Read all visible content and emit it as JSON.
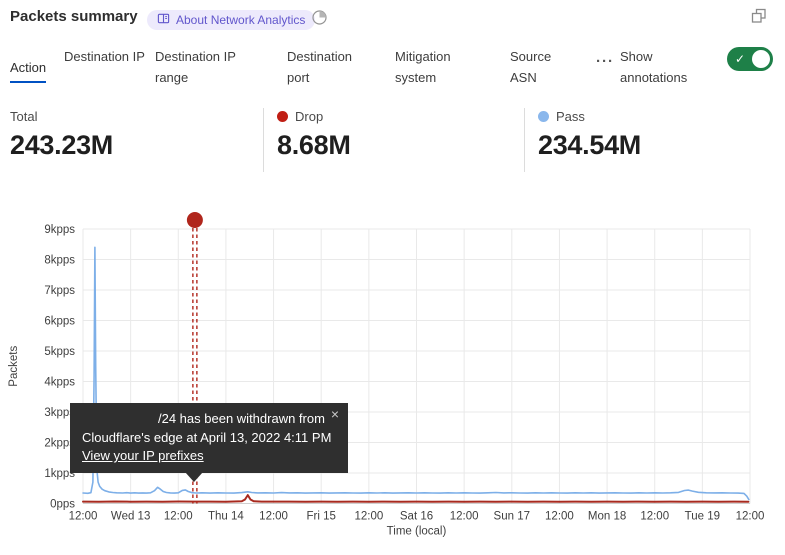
{
  "header": {
    "title": "Packets summary",
    "badge_label": "About Network Analytics"
  },
  "icons": {
    "badge": "book-icon",
    "header_time": "time-filter-icon",
    "window": "expand-icon",
    "more": "ellipsis-icon",
    "close": "close-icon"
  },
  "tabs": {
    "items": [
      {
        "label": "Action",
        "active": true
      },
      {
        "label": "Destination IP",
        "active": false
      },
      {
        "label": "Destination IP range",
        "active": false
      },
      {
        "label": "Destination port",
        "active": false
      },
      {
        "label": "Mitigation system",
        "active": false
      },
      {
        "label": "Source ASN",
        "active": false
      }
    ],
    "more_label": "···",
    "annotations_label": "Show annotations",
    "toggle_on": true,
    "active_underline_color": "#0051c3",
    "toggle_color": "#1e8048"
  },
  "stats": {
    "items": [
      {
        "label": "Total",
        "value": "243.23M",
        "dot_color": null
      },
      {
        "label": "Drop",
        "value": "8.68M",
        "dot_color": "#c01e14"
      },
      {
        "label": "Pass",
        "value": "234.54M",
        "dot_color": "#8ab7ec"
      }
    ]
  },
  "tooltip": {
    "line1": "/24 has been withdrawn from",
    "line2": "Cloudflare's edge at April 13, 2022 4:11 PM",
    "link_label": "View your IP prefixes",
    "close_label": "×"
  },
  "chart_data": {
    "type": "line",
    "title": "",
    "xlabel": "Time (local)",
    "ylabel": "Packets",
    "grid": true,
    "legend_position": "none",
    "x_unit": "hours from Apr 12 12:00",
    "x_range": [
      0,
      168
    ],
    "ylim": [
      0,
      9000
    ],
    "y_ticks": [
      {
        "value": 0,
        "label": "0pps"
      },
      {
        "value": 1000,
        "label": "1kpps"
      },
      {
        "value": 2000,
        "label": "2kpps"
      },
      {
        "value": 3000,
        "label": "3kpps"
      },
      {
        "value": 4000,
        "label": "4kpps"
      },
      {
        "value": 5000,
        "label": "5kpps"
      },
      {
        "value": 6000,
        "label": "6kpps"
      },
      {
        "value": 7000,
        "label": "7kpps"
      },
      {
        "value": 8000,
        "label": "8kpps"
      },
      {
        "value": 9000,
        "label": "9kpps"
      }
    ],
    "x_ticks": [
      {
        "hour": 0,
        "label": "12:00"
      },
      {
        "hour": 12,
        "label": "Wed 13"
      },
      {
        "hour": 24,
        "label": "12:00"
      },
      {
        "hour": 36,
        "label": "Thu 14"
      },
      {
        "hour": 48,
        "label": "12:00"
      },
      {
        "hour": 60,
        "label": "Fri 15"
      },
      {
        "hour": 72,
        "label": "12:00"
      },
      {
        "hour": 84,
        "label": "Sat 16"
      },
      {
        "hour": 96,
        "label": "12:00"
      },
      {
        "hour": 108,
        "label": "Sun 17"
      },
      {
        "hour": 120,
        "label": "12:00"
      },
      {
        "hour": 132,
        "label": "Mon 18"
      },
      {
        "hour": 144,
        "label": "12:00"
      },
      {
        "hour": 156,
        "label": "Tue 19"
      },
      {
        "hour": 168,
        "label": "12:00"
      }
    ],
    "series": [
      {
        "name": "Pass",
        "color": "#7dafe8",
        "unit": "pps",
        "points": [
          [
            0,
            345
          ],
          [
            1.2,
            335
          ],
          [
            2,
            355
          ],
          [
            2.5,
            700
          ],
          [
            2.8,
            4200
          ],
          [
            3,
            8400
          ],
          [
            3.2,
            4500
          ],
          [
            3.5,
            1100
          ],
          [
            3.8,
            700
          ],
          [
            4.2,
            560
          ],
          [
            4.8,
            470
          ],
          [
            5.5,
            420
          ],
          [
            6.5,
            380
          ],
          [
            7.5,
            360
          ],
          [
            8.5,
            350
          ],
          [
            10,
            345
          ],
          [
            11,
            355
          ],
          [
            12,
            340
          ],
          [
            13,
            350
          ],
          [
            14,
            342
          ],
          [
            15,
            348
          ],
          [
            16,
            340
          ],
          [
            17,
            352
          ],
          [
            18,
            420
          ],
          [
            18.8,
            530
          ],
          [
            19.5,
            470
          ],
          [
            20.2,
            395
          ],
          [
            21,
            360
          ],
          [
            22,
            348
          ],
          [
            23,
            342
          ],
          [
            24,
            352
          ],
          [
            25,
            430
          ],
          [
            25.8,
            445
          ],
          [
            26.5,
            395
          ],
          [
            27.5,
            355
          ],
          [
            28.5,
            345
          ],
          [
            30,
            350
          ],
          [
            32,
            342
          ],
          [
            34,
            352
          ],
          [
            36,
            344
          ],
          [
            38,
            340
          ],
          [
            40,
            358
          ],
          [
            41.5,
            385
          ],
          [
            42.5,
            362
          ],
          [
            44,
            346
          ],
          [
            46,
            352
          ],
          [
            48,
            344
          ],
          [
            50,
            356
          ],
          [
            52,
            346
          ],
          [
            54,
            350
          ],
          [
            56,
            342
          ],
          [
            58,
            348
          ],
          [
            60,
            352
          ],
          [
            62,
            342
          ],
          [
            64,
            348
          ],
          [
            66,
            352
          ],
          [
            68,
            344
          ],
          [
            70,
            340
          ],
          [
            72,
            350
          ],
          [
            74,
            344
          ],
          [
            76,
            352
          ],
          [
            78,
            342
          ],
          [
            80,
            346
          ],
          [
            82,
            352
          ],
          [
            84,
            344
          ],
          [
            86,
            350
          ],
          [
            88,
            344
          ],
          [
            90,
            340
          ],
          [
            92,
            350
          ],
          [
            94,
            344
          ],
          [
            96,
            352
          ],
          [
            98,
            344
          ],
          [
            100,
            340
          ],
          [
            102,
            352
          ],
          [
            104,
            362
          ],
          [
            106,
            346
          ],
          [
            108,
            352
          ],
          [
            110,
            344
          ],
          [
            112,
            340
          ],
          [
            114,
            350
          ],
          [
            116,
            344
          ],
          [
            118,
            350
          ],
          [
            120,
            344
          ],
          [
            122,
            340
          ],
          [
            124,
            350
          ],
          [
            126,
            344
          ],
          [
            128,
            350
          ],
          [
            130,
            342
          ],
          [
            132,
            346
          ],
          [
            134,
            350
          ],
          [
            136,
            344
          ],
          [
            138,
            340
          ],
          [
            140,
            350
          ],
          [
            142,
            344
          ],
          [
            144,
            350
          ],
          [
            146,
            344
          ],
          [
            148,
            352
          ],
          [
            150,
            365
          ],
          [
            151.5,
            425
          ],
          [
            152.5,
            438
          ],
          [
            153.5,
            405
          ],
          [
            155,
            368
          ],
          [
            157,
            352
          ],
          [
            159,
            346
          ],
          [
            161,
            350
          ],
          [
            163,
            344
          ],
          [
            165,
            342
          ],
          [
            166.5,
            330
          ],
          [
            167.2,
            240
          ],
          [
            167.7,
            130
          ]
        ]
      },
      {
        "name": "Drop",
        "color": "#a82a1f",
        "unit": "pps",
        "points": [
          [
            0,
            62
          ],
          [
            4,
            60
          ],
          [
            8,
            64
          ],
          [
            12,
            60
          ],
          [
            16,
            63
          ],
          [
            20,
            60
          ],
          [
            24,
            64
          ],
          [
            28,
            61
          ],
          [
            32,
            63
          ],
          [
            36,
            60
          ],
          [
            40,
            72
          ],
          [
            40.8,
            130
          ],
          [
            41.5,
            275
          ],
          [
            42.2,
            130
          ],
          [
            43,
            75
          ],
          [
            45,
            63
          ],
          [
            48,
            61
          ],
          [
            52,
            63
          ],
          [
            56,
            60
          ],
          [
            60,
            62
          ],
          [
            64,
            60
          ],
          [
            68,
            63
          ],
          [
            72,
            60
          ],
          [
            76,
            62
          ],
          [
            80,
            60
          ],
          [
            84,
            63
          ],
          [
            88,
            60
          ],
          [
            92,
            62
          ],
          [
            96,
            60
          ],
          [
            100,
            63
          ],
          [
            104,
            60
          ],
          [
            108,
            62
          ],
          [
            112,
            60
          ],
          [
            116,
            63
          ],
          [
            120,
            60
          ],
          [
            124,
            62
          ],
          [
            128,
            60
          ],
          [
            132,
            63
          ],
          [
            136,
            60
          ],
          [
            140,
            62
          ],
          [
            144,
            60
          ],
          [
            148,
            63
          ],
          [
            152,
            60
          ],
          [
            156,
            62
          ],
          [
            160,
            60
          ],
          [
            164,
            62
          ],
          [
            167.6,
            60
          ]
        ]
      }
    ],
    "annotation": {
      "hour": 28.18,
      "color": "#b0261c",
      "event": "IP prefix withdrawn",
      "event_time_label": "April 13, 2022 4:11 PM"
    }
  }
}
